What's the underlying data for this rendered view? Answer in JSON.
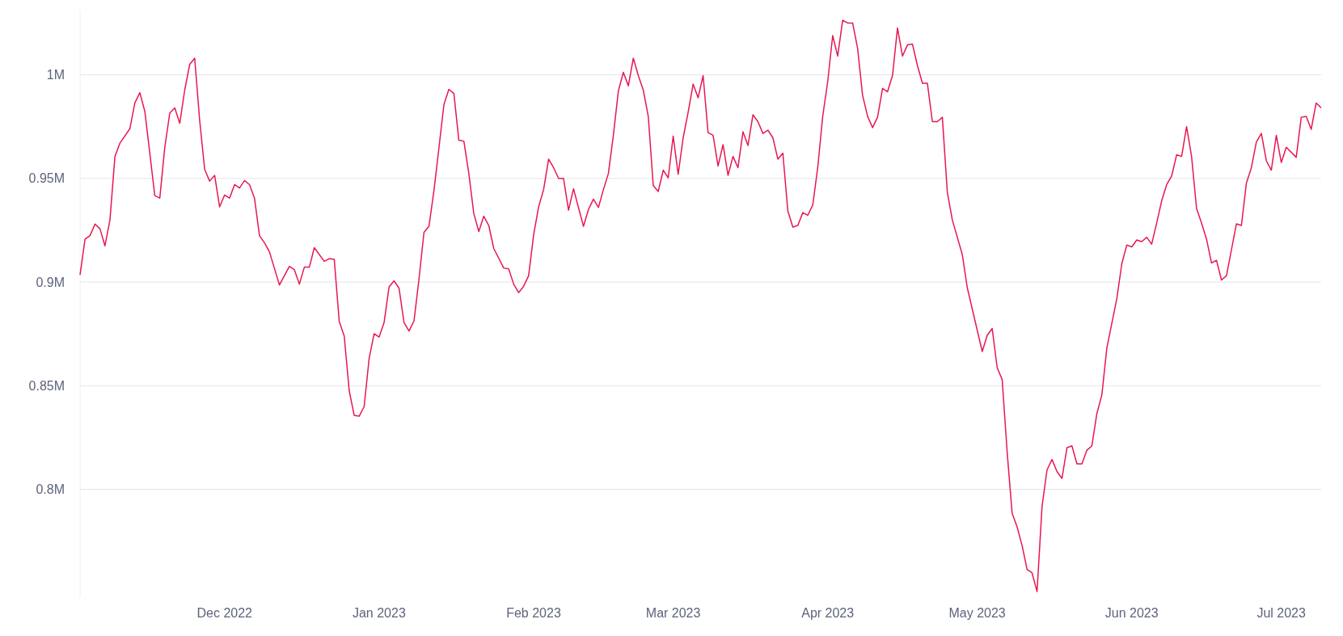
{
  "chart_data": {
    "type": "line",
    "grid": "y",
    "marker": "none",
    "line_style": "solid",
    "xlim": [
      "2022-11-02",
      "2023-07-09"
    ],
    "xticks": [
      {
        "value": "2022-12-01",
        "label": "Dec 2022"
      },
      {
        "value": "2023-01-01",
        "label": "Jan 2023"
      },
      {
        "value": "2023-02-01",
        "label": "Feb 2023"
      },
      {
        "value": "2023-03-01",
        "label": "Mar 2023"
      },
      {
        "value": "2023-04-01",
        "label": "Apr 2023"
      },
      {
        "value": "2023-05-01",
        "label": "May 2023"
      },
      {
        "value": "2023-06-01",
        "label": "Jun 2023"
      },
      {
        "value": "2023-07-01",
        "label": "Jul 2023"
      }
    ],
    "ylim": [
      748000,
      1031000
    ],
    "yticks": [
      {
        "value": 800000,
        "label": "0.8M"
      },
      {
        "value": 850000,
        "label": "0.85M"
      },
      {
        "value": 900000,
        "label": "0.9M"
      },
      {
        "value": 950000,
        "label": "0.95M"
      },
      {
        "value": 1000000,
        "label": "1M"
      }
    ],
    "series": [
      {
        "color": "#e8174f",
        "x": [
          "2022-11-02",
          "2022-11-03",
          "2022-11-04",
          "2022-11-05",
          "2022-11-06",
          "2022-11-07",
          "2022-11-08",
          "2022-11-09",
          "2022-11-10",
          "2022-11-12",
          "2022-11-13",
          "2022-11-14",
          "2022-11-15",
          "2022-11-17",
          "2022-11-18",
          "2022-11-19",
          "2022-11-20",
          "2022-11-21",
          "2022-11-22",
          "2022-11-23",
          "2022-11-24",
          "2022-11-25",
          "2022-11-26",
          "2022-11-27",
          "2022-11-28",
          "2022-11-29",
          "2022-11-30",
          "2022-12-01",
          "2022-12-02",
          "2022-12-03",
          "2022-12-04",
          "2022-12-05",
          "2022-12-06",
          "2022-12-07",
          "2022-12-08",
          "2022-12-09",
          "2022-12-10",
          "2022-12-12",
          "2022-12-14",
          "2022-12-15",
          "2022-12-16",
          "2022-12-17",
          "2022-12-18",
          "2022-12-19",
          "2022-12-21",
          "2022-12-22",
          "2022-12-23",
          "2022-12-24",
          "2022-12-25",
          "2022-12-26",
          "2022-12-27",
          "2022-12-28",
          "2022-12-29",
          "2022-12-30",
          "2022-12-31",
          "2023-01-01",
          "2023-01-02",
          "2023-01-03",
          "2023-01-04",
          "2023-01-05",
          "2023-01-06",
          "2023-01-07",
          "2023-01-08",
          "2023-01-09",
          "2023-01-10",
          "2023-01-11",
          "2023-01-12",
          "2023-01-13",
          "2023-01-14",
          "2023-01-15",
          "2023-01-16",
          "2023-01-17",
          "2023-01-18",
          "2023-01-19",
          "2023-01-20",
          "2023-01-21",
          "2023-01-22",
          "2023-01-23",
          "2023-01-24",
          "2023-01-26",
          "2023-01-27",
          "2023-01-28",
          "2023-01-29",
          "2023-01-30",
          "2023-01-31",
          "2023-02-01",
          "2023-02-02",
          "2023-02-03",
          "2023-02-04",
          "2023-02-05",
          "2023-02-06",
          "2023-02-07",
          "2023-02-08",
          "2023-02-09",
          "2023-02-11",
          "2023-02-12",
          "2023-02-13",
          "2023-02-14",
          "2023-02-15",
          "2023-02-16",
          "2023-02-17",
          "2023-02-18",
          "2023-02-19",
          "2023-02-20",
          "2023-02-21",
          "2023-02-22",
          "2023-02-23",
          "2023-02-24",
          "2023-02-25",
          "2023-02-26",
          "2023-02-27",
          "2023-02-28",
          "2023-03-01",
          "2023-03-02",
          "2023-03-03",
          "2023-03-04",
          "2023-03-05",
          "2023-03-06",
          "2023-03-07",
          "2023-03-08",
          "2023-03-09",
          "2023-03-10",
          "2023-03-11",
          "2023-03-12",
          "2023-03-13",
          "2023-03-14",
          "2023-03-15",
          "2023-03-16",
          "2023-03-17",
          "2023-03-18",
          "2023-03-19",
          "2023-03-20",
          "2023-03-21",
          "2023-03-22",
          "2023-03-23",
          "2023-03-24",
          "2023-03-25",
          "2023-03-26",
          "2023-03-27",
          "2023-03-28",
          "2023-03-29",
          "2023-03-30",
          "2023-03-31",
          "2023-04-01",
          "2023-04-02",
          "2023-04-03",
          "2023-04-04",
          "2023-04-05",
          "2023-04-06",
          "2023-04-07",
          "2023-04-08",
          "2023-04-09",
          "2023-04-10",
          "2023-04-11",
          "2023-04-12",
          "2023-04-13",
          "2023-04-14",
          "2023-04-15",
          "2023-04-16",
          "2023-04-17",
          "2023-04-18",
          "2023-04-19",
          "2023-04-20",
          "2023-04-21",
          "2023-04-22",
          "2023-04-23",
          "2023-04-24",
          "2023-04-25",
          "2023-04-26",
          "2023-04-28",
          "2023-04-29",
          "2023-05-02",
          "2023-05-03",
          "2023-05-04",
          "2023-05-05",
          "2023-05-06",
          "2023-05-07",
          "2023-05-08",
          "2023-05-09",
          "2023-05-10",
          "2023-05-11",
          "2023-05-12",
          "2023-05-13",
          "2023-05-14",
          "2023-05-15",
          "2023-05-16",
          "2023-05-17",
          "2023-05-18",
          "2023-05-19",
          "2023-05-20",
          "2023-05-21",
          "2023-05-22",
          "2023-05-23",
          "2023-05-24",
          "2023-05-25",
          "2023-05-26",
          "2023-05-27",
          "2023-05-29",
          "2023-05-30",
          "2023-05-31",
          "2023-06-01",
          "2023-06-02",
          "2023-06-03",
          "2023-06-04",
          "2023-06-05",
          "2023-06-06",
          "2023-06-07",
          "2023-06-08",
          "2023-06-09",
          "2023-06-10",
          "2023-06-11",
          "2023-06-12",
          "2023-06-13",
          "2023-06-14",
          "2023-06-15",
          "2023-06-16",
          "2023-06-17",
          "2023-06-18",
          "2023-06-19",
          "2023-06-20",
          "2023-06-22",
          "2023-06-23",
          "2023-06-24",
          "2023-06-25",
          "2023-06-26",
          "2023-06-27",
          "2023-06-28",
          "2023-06-29",
          "2023-06-30",
          "2023-07-01",
          "2023-07-02",
          "2023-07-04",
          "2023-07-05",
          "2023-07-06",
          "2023-07-07",
          "2023-07-08",
          "2023-07-09"
        ],
        "values": [
          903500,
          920700,
          922400,
          928000,
          925700,
          917500,
          930000,
          960600,
          967000,
          974000,
          986400,
          991400,
          982300,
          941700,
          940500,
          965000,
          981500,
          984000,
          976600,
          992600,
          1005000,
          1008000,
          978000,
          954400,
          948700,
          951500,
          936300,
          942000,
          940500,
          947000,
          945400,
          949000,
          947000,
          940500,
          922400,
          919000,
          914600,
          898600,
          907600,
          906000,
          899000,
          907200,
          907200,
          916600,
          910000,
          911300,
          910900,
          881000,
          874000,
          847600,
          835700,
          835300,
          840000,
          863200,
          875100,
          873500,
          880500,
          897700,
          900600,
          897000,
          880500,
          876400,
          881300,
          901400,
          924000,
          926900,
          944100,
          964700,
          985600,
          993000,
          991000,
          968400,
          968000,
          952400,
          933000,
          924400,
          931800,
          927300,
          916200,
          906800,
          906400,
          899000,
          894900,
          898000,
          903100,
          922800,
          936300,
          944600,
          959300,
          955200,
          950000,
          950000,
          934700,
          945000,
          926900,
          935000,
          940000,
          936000,
          944600,
          952400,
          970800,
          992200,
          1001200,
          994700,
          1008000,
          999600,
          992600,
          980000,
          946600,
          943700,
          954000,
          950300,
          970400,
          952000,
          969600,
          981900,
          995500,
          988900,
          999600,
          972100,
          970800,
          956000,
          966300,
          951500,
          960600,
          955200,
          972500,
          965900,
          980700,
          977400,
          971700,
          973300,
          969600,
          959300,
          962200,
          934300,
          926500,
          927300,
          933500,
          932200,
          937200,
          955200,
          980000,
          996700,
          1018900,
          1009000,
          1026300,
          1025000,
          1025000,
          1012700,
          990000,
          980000,
          974500,
          979500,
          993400,
          991800,
          999600,
          1022600,
          1009000,
          1014400,
          1014800,
          1004500,
          995900,
          995900,
          977400,
          977400,
          979500,
          943300,
          930000,
          913300,
          897300,
          866500,
          874300,
          877600,
          858700,
          853000,
          818000,
          788500,
          781900,
          772900,
          761400,
          759700,
          750700,
          791800,
          809400,
          814400,
          808600,
          805300,
          820100,
          821000,
          812300,
          812300,
          818900,
          821000,
          836600,
          845600,
          868200,
          892000,
          908800,
          917900,
          917000,
          920300,
          919500,
          921600,
          918300,
          928500,
          939200,
          947000,
          951100,
          961400,
          960600,
          975000,
          960600,
          935500,
          928500,
          920700,
          909200,
          910500,
          901000,
          903100,
          928100,
          927300,
          947800,
          955200,
          967600,
          971700,
          958500,
          954000,
          970800,
          957700,
          965000,
          960200,
          979500,
          979900,
          973700,
          986400,
          984000
        ]
      }
    ]
  }
}
